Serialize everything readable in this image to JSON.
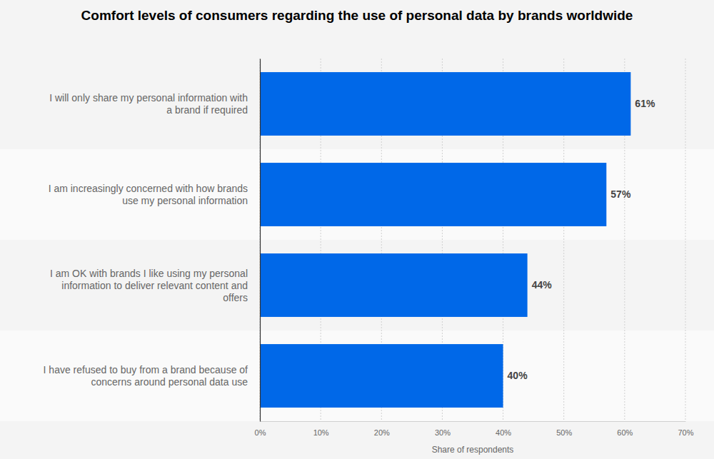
{
  "chart_data": {
    "type": "bar",
    "orientation": "horizontal",
    "title": "Comfort levels of consumers regarding the use of personal data by brands worldwide",
    "categories": [
      "I will only share my personal information with a brand if required",
      "I am increasingly concerned with how brands use my personal information",
      "I am OK with brands I like using my personal information to deliver relevant content and offers",
      "I have refused to buy from a brand because of concerns around personal data use"
    ],
    "values": [
      61,
      57,
      44,
      40
    ],
    "value_labels": [
      "61%",
      "57%",
      "44%",
      "40%"
    ],
    "color": "#0068e8",
    "xlabel": "Share of respondents",
    "xlim": [
      0,
      70
    ],
    "xticks": [
      {
        "value": 0,
        "label": "0%"
      },
      {
        "value": 10,
        "label": "10%"
      },
      {
        "value": 20,
        "label": "20%"
      },
      {
        "value": 30,
        "label": "30%"
      },
      {
        "value": 40,
        "label": "40%"
      },
      {
        "value": 50,
        "label": "50%"
      },
      {
        "value": 60,
        "label": "60%"
      },
      {
        "value": 70,
        "label": "70%"
      }
    ],
    "grid": true,
    "data_labels": true
  }
}
